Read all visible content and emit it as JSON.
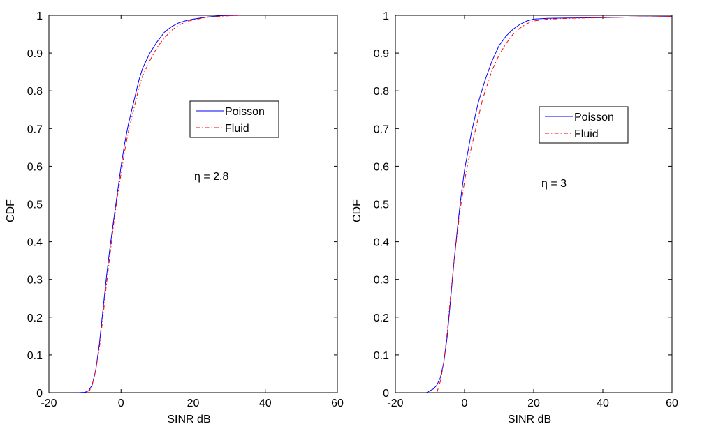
{
  "chart_data": [
    {
      "type": "line",
      "title": "",
      "xlabel": "SINR dB",
      "ylabel": "CDF",
      "xlim": [
        -20,
        60
      ],
      "ylim": [
        0,
        1
      ],
      "xticks": [
        -20,
        0,
        20,
        40,
        60
      ],
      "yticks": [
        0,
        0.1,
        0.2,
        0.3,
        0.4,
        0.5,
        0.6,
        0.7,
        0.8,
        0.9,
        1
      ],
      "annotation": "η = 2.8",
      "legend": {
        "position": "upper-center",
        "entries": [
          "Poisson",
          "Fluid"
        ]
      },
      "grid": false,
      "series": [
        {
          "name": "Poisson",
          "color": "#0000ff",
          "style": "solid",
          "x": [
            -12,
            -10,
            -9,
            -8,
            -7,
            -6,
            -5,
            -4,
            -3,
            -2,
            -1,
            0,
            1,
            2,
            3,
            4,
            5,
            6,
            8,
            10,
            12,
            14,
            16,
            18,
            20,
            24,
            28,
            33
          ],
          "y": [
            0,
            0.001,
            0.005,
            0.02,
            0.06,
            0.13,
            0.22,
            0.31,
            0.39,
            0.46,
            0.53,
            0.6,
            0.66,
            0.71,
            0.75,
            0.79,
            0.83,
            0.86,
            0.9,
            0.93,
            0.955,
            0.97,
            0.98,
            0.986,
            0.99,
            0.996,
            0.999,
            1.0
          ]
        },
        {
          "name": "Fluid",
          "color": "#ff0000",
          "style": "dashdot",
          "x": [
            -9,
            -8,
            -7,
            -6,
            -5,
            -4,
            -3,
            -2,
            -1,
            0,
            1,
            2,
            3,
            4,
            5,
            6,
            8,
            10,
            12,
            14,
            16,
            18,
            20,
            24,
            28,
            33
          ],
          "y": [
            0,
            0.02,
            0.06,
            0.12,
            0.2,
            0.29,
            0.37,
            0.45,
            0.52,
            0.58,
            0.64,
            0.69,
            0.73,
            0.77,
            0.81,
            0.84,
            0.88,
            0.915,
            0.94,
            0.96,
            0.974,
            0.983,
            0.988,
            0.995,
            0.998,
            1.0
          ]
        }
      ]
    },
    {
      "type": "line",
      "title": "",
      "xlabel": "SINR dB",
      "ylabel": "CDF",
      "xlim": [
        -20,
        60
      ],
      "ylim": [
        0,
        1
      ],
      "xticks": [
        -20,
        0,
        20,
        40,
        60
      ],
      "yticks": [
        0,
        0.1,
        0.2,
        0.3,
        0.4,
        0.5,
        0.6,
        0.7,
        0.8,
        0.9,
        1
      ],
      "annotation": "η = 3",
      "legend": {
        "position": "upper-center",
        "entries": [
          "Poisson",
          "Fluid"
        ]
      },
      "grid": false,
      "series": [
        {
          "name": "Poisson",
          "color": "#0000ff",
          "style": "solid",
          "x": [
            -11,
            -9,
            -8,
            -7,
            -6,
            -5,
            -4,
            -3,
            -2,
            -1,
            0,
            1,
            2,
            3,
            4,
            5,
            6,
            8,
            10,
            12,
            14,
            16,
            18,
            20,
            24,
            30,
            40,
            50,
            60
          ],
          "y": [
            0,
            0.01,
            0.02,
            0.04,
            0.08,
            0.15,
            0.25,
            0.35,
            0.44,
            0.52,
            0.59,
            0.64,
            0.69,
            0.73,
            0.77,
            0.8,
            0.83,
            0.88,
            0.92,
            0.945,
            0.963,
            0.976,
            0.985,
            0.99,
            0.992,
            0.993,
            0.994,
            0.996,
            0.997
          ]
        },
        {
          "name": "Fluid",
          "color": "#ff0000",
          "style": "dashdot",
          "x": [
            -8,
            -7,
            -6,
            -5,
            -4,
            -3,
            -2,
            -1,
            0,
            1,
            2,
            3,
            4,
            5,
            6,
            8,
            10,
            12,
            14,
            16,
            18,
            20,
            24,
            30,
            40,
            50,
            60
          ],
          "y": [
            0,
            0.03,
            0.08,
            0.16,
            0.26,
            0.35,
            0.43,
            0.5,
            0.56,
            0.61,
            0.65,
            0.69,
            0.73,
            0.77,
            0.8,
            0.855,
            0.895,
            0.925,
            0.95,
            0.966,
            0.978,
            0.985,
            0.99,
            0.992,
            0.994,
            0.996,
            0.997
          ]
        }
      ]
    }
  ]
}
